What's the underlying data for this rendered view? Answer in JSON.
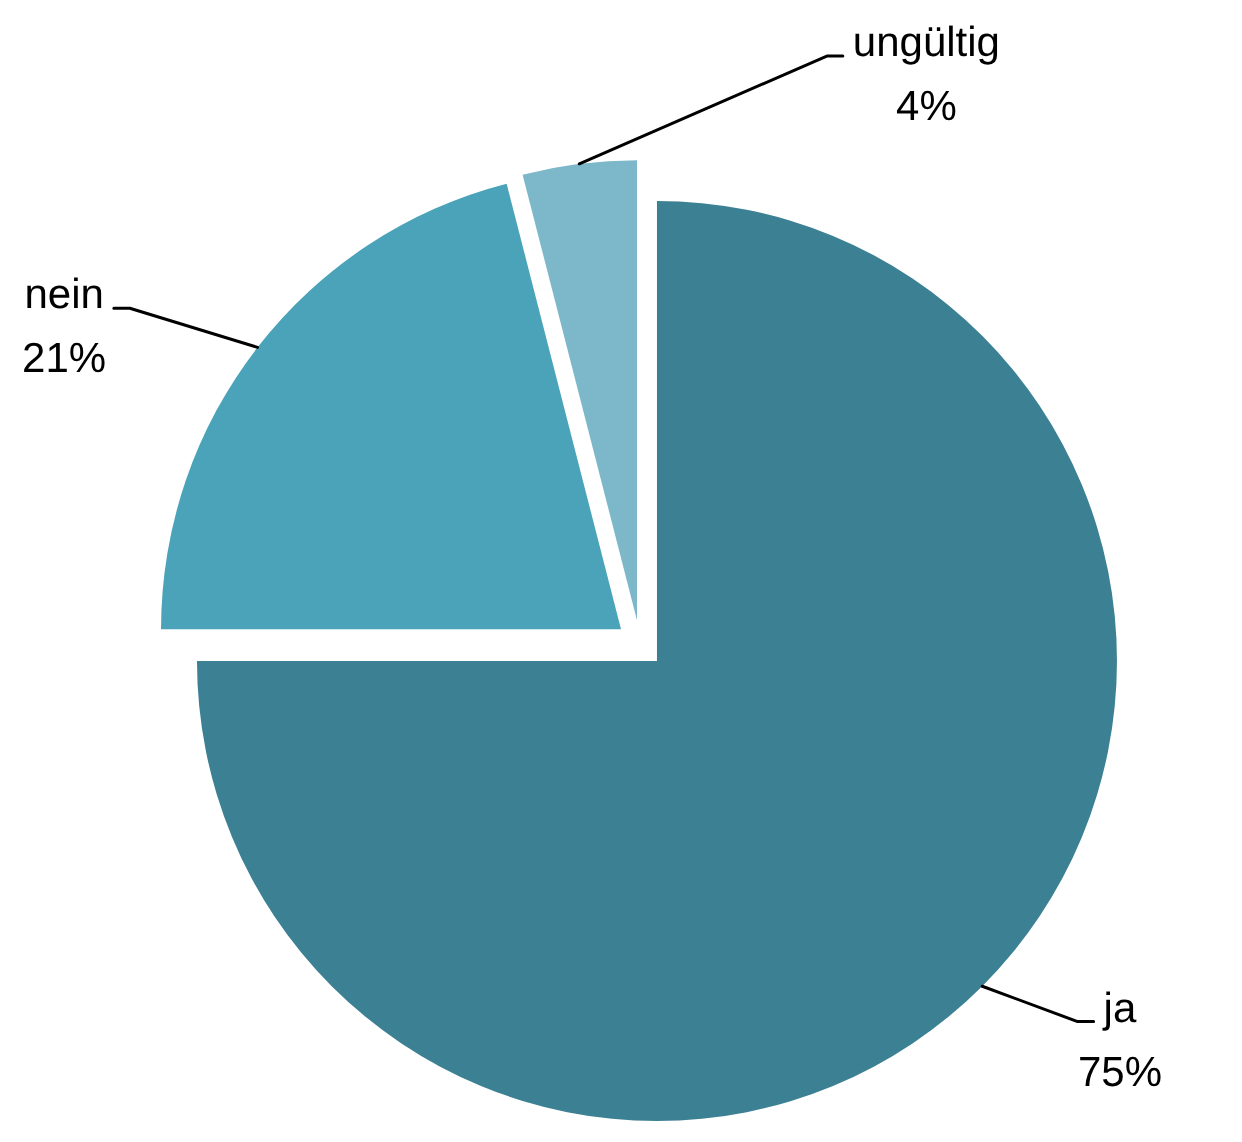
{
  "chart_data": {
    "type": "pie",
    "categories": [
      "ja",
      "nein",
      "ungültig"
    ],
    "values": [
      75,
      21,
      4
    ],
    "colors": [
      "#3c8094",
      "#4ba3b9",
      "#7db8ca"
    ],
    "value_labels": [
      "75%",
      "21%",
      "4%"
    ]
  }
}
